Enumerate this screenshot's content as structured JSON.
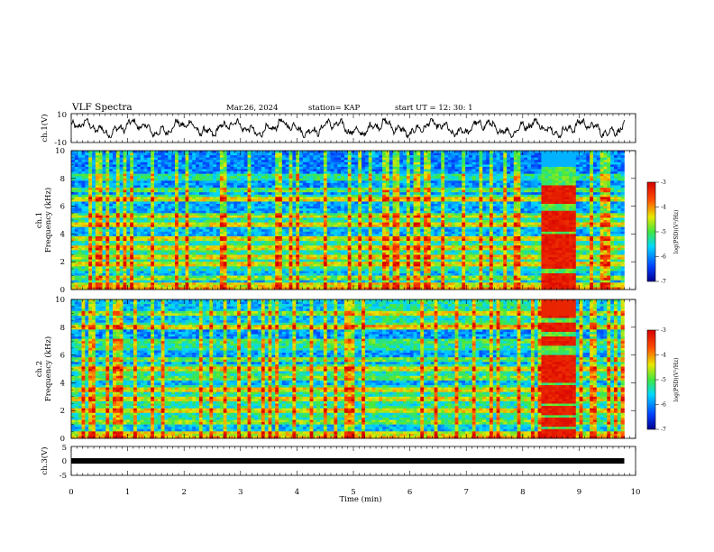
{
  "header": {
    "title": "VLF Spectra",
    "date": "Mar.26, 2024",
    "station": "station= KAP",
    "start": "start  UT  =   12: 30: 1"
  },
  "chart_data": [
    {
      "type": "line",
      "id": "ch1-waveform",
      "ylabel": "ch.1(V)",
      "ylim": [
        -10,
        10
      ],
      "yticks": [
        "10",
        "-10"
      ],
      "xlim": [
        0,
        10
      ],
      "description_of_signal": "noisy waveform oscillating roughly between -6 and 6 V from t=0 to ~9.8 min"
    },
    {
      "type": "heatmap",
      "id": "ch1-spectrogram",
      "ylabel": "ch.1\nFrequency (kHz)",
      "ylabel_lines": [
        "ch.1",
        "Frequency (kHz)"
      ],
      "ylim": [
        0,
        10
      ],
      "yticks": [
        "0",
        "2",
        "4",
        "6",
        "8",
        "10"
      ],
      "xlim": [
        0,
        10
      ],
      "data_end_min": 9.8,
      "colorbar": {
        "label": "log(PSD)(V²/Hz)",
        "min": -7,
        "max": -3,
        "ticks": [
          "-3",
          "-4",
          "-5",
          "-6",
          "-7"
        ]
      },
      "horizontal_bands_khz": [
        0.3,
        0.9,
        1.8,
        2.3,
        3.0,
        3.6,
        4.6,
        5.3,
        6.5,
        7.2
      ],
      "burst_interval_min": [
        8.35,
        8.95
      ]
    },
    {
      "type": "heatmap",
      "id": "ch2-spectrogram",
      "ylabel": "ch.2\nFrequency (kHz)",
      "ylabel_lines": [
        "ch.2",
        "Frequency (kHz)"
      ],
      "ylim": [
        0,
        10
      ],
      "yticks": [
        "0",
        "2",
        "4",
        "6",
        "8",
        "10"
      ],
      "xlim": [
        0,
        10
      ],
      "data_end_min": 9.8,
      "colorbar": {
        "label": "log(PSD)(V²/Hz)",
        "min": -7,
        "max": -3,
        "ticks": [
          "-3",
          "-4",
          "-5",
          "-6",
          "-7"
        ]
      },
      "horizontal_bands_khz": [
        0.3,
        1.1,
        2.0,
        2.8,
        3.5,
        4.4,
        5.0,
        5.7,
        7.0,
        8.0,
        9.0
      ],
      "burst_interval_min": [
        8.35,
        8.95
      ]
    },
    {
      "type": "line",
      "id": "ch3-trace",
      "ylabel": "ch.3(V)",
      "ylim": [
        -5,
        5
      ],
      "yticks": [
        "5",
        "0",
        "-5"
      ],
      "xlim": [
        0,
        10
      ],
      "constant_value": 0,
      "data_end_min": 9.8
    }
  ],
  "xaxis": {
    "label": "Time (min)",
    "ticks": [
      "0",
      "1",
      "2",
      "3",
      "4",
      "5",
      "6",
      "7",
      "8",
      "9",
      "10"
    ]
  },
  "colors": {
    "lowest": "#000090",
    "low": "#0060ff",
    "mid_low": "#00e0ff",
    "mid": "#40e840",
    "mid_high": "#e8e800",
    "high": "#ff6000",
    "highest": "#e00000"
  }
}
